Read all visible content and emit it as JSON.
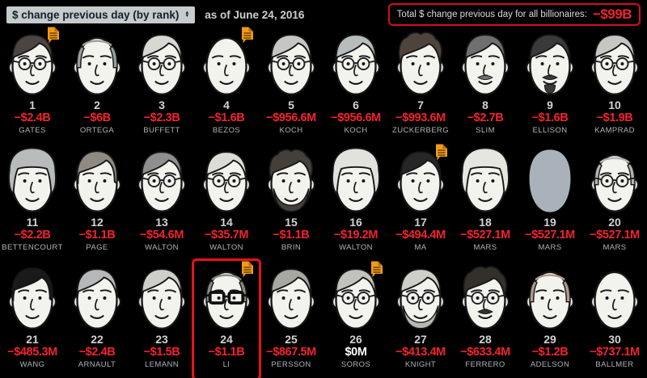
{
  "header": {
    "sort_control": {
      "label": "$ change previous day (by rank)"
    },
    "as_of": "as of June 24, 2016",
    "total_box": {
      "label": "Total $ change previous day for all billionaires:",
      "value": "−$99B"
    }
  },
  "colors": {
    "background": "#000000",
    "negative_value": "#f2232e",
    "neutral_value": "#ffffff",
    "rank_text": "#d2d2d2",
    "name_text": "#aeb5b7",
    "note_icon": "#f09a1c",
    "highlight_border": "#e8101c",
    "sort_box_bg": "#c6cbcc",
    "total_border": "#d40f1e"
  },
  "chart_data": {
    "type": "table",
    "title": "$ change previous day (by rank)",
    "as_of": "June 24, 2016",
    "total_label": "Total $ change previous day for all billionaires:",
    "total_value": "−$99B",
    "columns": [
      "rank",
      "change_previous_day",
      "name"
    ],
    "rows": [
      [
        "1",
        "−$2.4B",
        "GATES"
      ],
      [
        "2",
        "−$6B",
        "ORTEGA"
      ],
      [
        "3",
        "−$2.3B",
        "BUFFETT"
      ],
      [
        "4",
        "−$1.6B",
        "BEZOS"
      ],
      [
        "5",
        "−$956.6M",
        "KOCH"
      ],
      [
        "6",
        "−$956.6M",
        "KOCH"
      ],
      [
        "7",
        "−$993.6M",
        "ZUCKERBERG"
      ],
      [
        "8",
        "−$2.7B",
        "SLIM"
      ],
      [
        "9",
        "−$1.6B",
        "ELLISON"
      ],
      [
        "10",
        "−$1.9B",
        "KAMPRAD"
      ],
      [
        "11",
        "−$2.2B",
        "BETTENCOURT"
      ],
      [
        "12",
        "−$1.1B",
        "PAGE"
      ],
      [
        "13",
        "−$54.6M",
        "WALTON"
      ],
      [
        "14",
        "−$35.7M",
        "WALTON"
      ],
      [
        "15",
        "−$1.1B",
        "BRIN"
      ],
      [
        "16",
        "−$19.2M",
        "WALTON"
      ],
      [
        "17",
        "−$494.4M",
        "MA"
      ],
      [
        "18",
        "−$527.1M",
        "MARS"
      ],
      [
        "19",
        "−$527.1M",
        "MARS"
      ],
      [
        "20",
        "−$527.1M",
        "MARS"
      ],
      [
        "21",
        "−$485.3M",
        "WANG"
      ],
      [
        "22",
        "−$2.4B",
        "ARNAULT"
      ],
      [
        "23",
        "−$1.5B",
        "LEMANN"
      ],
      [
        "24",
        "−$1.1B",
        "LI"
      ],
      [
        "25",
        "−$867.5M",
        "PERSSON"
      ],
      [
        "26",
        "$0M",
        "SOROS"
      ],
      [
        "27",
        "−$413.4M",
        "KNIGHT"
      ],
      [
        "28",
        "−$633.4M",
        "FERRERO"
      ],
      [
        "29",
        "−$1.2B",
        "ADELSON"
      ],
      [
        "30",
        "−$737.1M",
        "BALLMER"
      ]
    ]
  },
  "cells_presentation": [
    {
      "note": true,
      "face": {
        "style": "side",
        "hair": "#4a4540",
        "glasses": "round"
      }
    },
    {
      "face": {
        "style": "balding",
        "hair": "#9aa0a0"
      }
    },
    {
      "face": {
        "style": "side",
        "hair": "#d8d8d2",
        "glasses": "round"
      }
    },
    {
      "note": true,
      "face": {
        "style": "bald"
      }
    },
    {
      "face": {
        "style": "side",
        "hair": "#c6c6c2",
        "glasses": "round"
      }
    },
    {
      "face": {
        "style": "side",
        "hair": "#b8bcbc",
        "glasses": "round"
      }
    },
    {
      "face": {
        "style": "curly",
        "hair": "#4e443c"
      }
    },
    {
      "face": {
        "style": "side",
        "hair": "#6f6f6f",
        "mustache": true
      }
    },
    {
      "face": {
        "style": "side",
        "hair": "#3a3a3a",
        "mustache": true,
        "goatee": true
      }
    },
    {
      "face": {
        "style": "side",
        "hair": "#c6c6c2",
        "glasses": "round"
      }
    },
    {
      "face": {
        "style": "womanCurly",
        "hair": "#b7bbbb"
      }
    },
    {
      "face": {
        "style": "full",
        "hair": "#8f8a82"
      }
    },
    {
      "face": {
        "style": "side",
        "hair": "#8f8f8f",
        "glasses": "round"
      }
    },
    {
      "face": {
        "style": "side",
        "hair": "#dcdcd6",
        "glasses": "round"
      }
    },
    {
      "face": {
        "style": "curly",
        "hair": "#443f38",
        "beard": true
      }
    },
    {
      "face": {
        "style": "womanCurly",
        "hair": "#e2e2dc"
      }
    },
    {
      "note": true,
      "face": {
        "style": "side",
        "hair": "#262626"
      }
    },
    {
      "face": {
        "style": "womanCurly",
        "hair": "#e6e6e0"
      }
    },
    {
      "face": {
        "style": "silhouette",
        "hair": "#a9b2ba"
      }
    },
    {
      "face": {
        "style": "balding",
        "hair": "#b4b4b0",
        "glasses": "round"
      }
    },
    {
      "face": {
        "style": "full",
        "hair": "#1a1a1a"
      }
    },
    {
      "face": {
        "style": "side",
        "hair": "#b4b8b8"
      }
    },
    {
      "face": {
        "style": "side",
        "hair": "#cfcfc9"
      }
    },
    {
      "note": true,
      "highlighted": true,
      "face": {
        "style": "balding",
        "hair": "#8a8a84",
        "glasses": "dark"
      }
    },
    {
      "face": {
        "style": "side",
        "hair": "#a8a8a2"
      }
    },
    {
      "note": true,
      "neutral": true,
      "face": {
        "style": "side",
        "hair": "#c2c2bc",
        "glasses": "round"
      }
    },
    {
      "face": {
        "style": "side",
        "hair": "#cfcfc9",
        "beard": true,
        "beardColor": "#b9b9b3",
        "glasses": "round"
      }
    },
    {
      "face": {
        "style": "curly",
        "hair": "#33302a",
        "glasses": "round",
        "mustache": true
      }
    },
    {
      "face": {
        "style": "balding",
        "hair": "#b49a8c"
      }
    },
    {
      "face": {
        "style": "bald"
      }
    }
  ]
}
